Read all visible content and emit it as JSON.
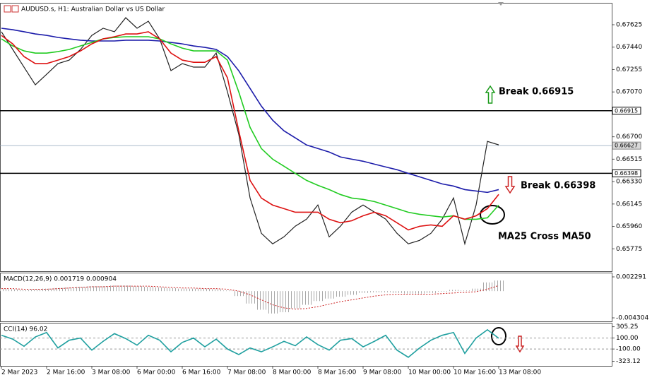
{
  "chart_data": [
    {
      "type": "line",
      "title": "AUDUSD.s, H1:  Australian Dollar vs US Dollar",
      "series": [
        {
          "color": "#222222",
          "values": [
            0.67567,
            0.67421,
            0.67275,
            0.67129,
            0.67216,
            0.67304,
            0.67333,
            0.67421,
            0.67537,
            0.67596,
            0.67567,
            0.67683,
            0.67596,
            0.67654,
            0.67508,
            0.67246,
            0.67304,
            0.67275,
            0.67275,
            0.67392,
            0.67071,
            0.6672,
            0.66195,
            0.65903,
            0.65816,
            0.65874,
            0.65962,
            0.6602,
            0.66137,
            0.65874,
            0.65962,
            0.66078,
            0.66137,
            0.66078,
            0.6602,
            0.65903,
            0.65816,
            0.65845,
            0.65903,
            0.6602,
            0.66195,
            0.65816,
            0.66137,
            0.66662,
            0.66633
          ]
        },
        {
          "color": "#1c1caa",
          "values": [
            0.67596,
            0.67584,
            0.67567,
            0.67549,
            0.67537,
            0.6752,
            0.67508,
            0.67497,
            0.67491,
            0.67491,
            0.67491,
            0.67497,
            0.67497,
            0.67497,
            0.67491,
            0.67479,
            0.67467,
            0.6745,
            0.67438,
            0.67421,
            0.67362,
            0.67245,
            0.67099,
            0.66953,
            0.66837,
            0.66749,
            0.66691,
            0.66632,
            0.66603,
            0.66574,
            0.66533,
            0.66515,
            0.66498,
            0.66474,
            0.66451,
            0.66428,
            0.66398,
            0.66369,
            0.6634,
            0.66311,
            0.66293,
            0.66264,
            0.66252,
            0.66241,
            0.66264
          ]
        },
        {
          "color": "#22cc22",
          "values": [
            0.67508,
            0.6745,
            0.67409,
            0.67391,
            0.67391,
            0.67403,
            0.67421,
            0.6745,
            0.67479,
            0.67508,
            0.6752,
            0.67526,
            0.67526,
            0.67526,
            0.67508,
            0.67467,
            0.67432,
            0.67409,
            0.67409,
            0.67409,
            0.67333,
            0.6707,
            0.66778,
            0.66603,
            0.66515,
            0.66457,
            0.66398,
            0.6634,
            0.66299,
            0.66264,
            0.66223,
            0.66194,
            0.66183,
            0.66165,
            0.66136,
            0.66107,
            0.66077,
            0.6606,
            0.66048,
            0.66037,
            0.66048,
            0.66019,
            0.66019,
            0.66031,
            0.66136
          ]
        },
        {
          "color": "#dd1111",
          "values": [
            0.67537,
            0.67467,
            0.67362,
            0.67304,
            0.67304,
            0.67333,
            0.67362,
            0.67409,
            0.67467,
            0.67508,
            0.67526,
            0.67549,
            0.67549,
            0.67567,
            0.67508,
            0.67391,
            0.67333,
            0.67315,
            0.67315,
            0.67362,
            0.67187,
            0.66749,
            0.6634,
            0.66194,
            0.66136,
            0.66107,
            0.66077,
            0.66077,
            0.66077,
            0.66019,
            0.6599,
            0.66007,
            0.66048,
            0.66077,
            0.66048,
            0.6599,
            0.65931,
            0.65961,
            0.65972,
            0.65961,
            0.66048,
            0.66019,
            0.66048,
            0.66107,
            0.66224
          ]
        }
      ],
      "ylim": [
        0.6559,
        0.678
      ],
      "yticks": [
        0.67625,
        {
          "value": 0.6744,
          "label": "0.67440"
        },
        0.67255,
        {
          "value": 0.6707,
          "label": "0.67070"
        },
        {
          "value": 0.667,
          "label": "0.66700"
        },
        0.66515,
        {
          "value": 0.6633,
          "label": "0.66330"
        },
        0.66145,
        {
          "value": 0.6596,
          "label": "0.65960"
        },
        0.65775
      ],
      "hlines": [
        0.66915,
        0.66398
      ],
      "last_price": 0.66627,
      "annotations": [
        "Break 0.66915",
        "Break 0.66398",
        "MA25 Cross MA50"
      ]
    },
    {
      "type": "bar",
      "title": "MACD(12,26,9) 0.001719 0.000904",
      "color": "#a8a8a8",
      "values": [
        0.0004,
        0.0003,
        0.0002,
        0.0003,
        0.0004,
        0.0005,
        0.0006,
        0.0007,
        0.0008,
        0.0008,
        0.0009,
        0.0009,
        0.0008,
        0.0007,
        0.0006,
        0.0005,
        0.0004,
        0.0004,
        0.0004,
        0.0003,
        0.0001,
        -0.0008,
        -0.002,
        -0.003,
        -0.0036,
        -0.0034,
        -0.0028,
        -0.0022,
        -0.0016,
        -0.0012,
        -0.0009,
        -0.0006,
        -0.0003,
        -0.0002,
        -0.0002,
        -0.0003,
        -0.0004,
        -0.0004,
        -0.0003,
        -0.0001,
        0.0002,
        0.0001,
        0.0004,
        0.0014,
        0.0017
      ],
      "line": {
        "color": "#cc2222",
        "values": [
          0.0004,
          0.0004,
          0.0003,
          0.0003,
          0.0003,
          0.0004,
          0.0005,
          0.0006,
          0.0007,
          0.0007,
          0.0008,
          0.0008,
          0.0008,
          0.0008,
          0.0007,
          0.0006,
          0.0005,
          0.0005,
          0.0004,
          0.0004,
          0.0003,
          0.0,
          -0.0006,
          -0.0014,
          -0.0022,
          -0.0027,
          -0.0029,
          -0.0028,
          -0.0025,
          -0.0021,
          -0.0017,
          -0.0014,
          -0.0011,
          -0.0008,
          -0.0006,
          -0.0005,
          -0.0005,
          -0.0005,
          -0.0005,
          -0.0004,
          -0.0003,
          -0.0002,
          -0.0001,
          0.0003,
          0.0009
        ]
      },
      "ylim": [
        -0.00487,
        0.00286
      ],
      "yticks": [
        0.002291,
        -0.004304
      ]
    },
    {
      "type": "line",
      "title": "CCI(14) 96.02",
      "categories": [
        "2 Mar 2023",
        null,
        null,
        null,
        "2 Mar 16:00",
        null,
        null,
        null,
        "3 Mar 08:00",
        null,
        null,
        null,
        "6 Mar 00:00",
        null,
        null,
        null,
        "6 Mar 16:00",
        null,
        null,
        null,
        "7 Mar 08:00",
        null,
        null,
        null,
        "8 Mar 00:00",
        null,
        null,
        null,
        "8 Mar 16:00",
        null,
        null,
        null,
        "9 Mar 08:00",
        null,
        null,
        null,
        "10 Mar 00:00",
        null,
        null,
        null,
        "10 Mar 16:00",
        null,
        null,
        null,
        "13 Mar 08:00"
      ],
      "series": [
        {
          "color": "#20a0a0",
          "values": [
            150,
            80,
            -50,
            120,
            200,
            -80,
            60,
            100,
            -120,
            40,
            180,
            90,
            -30,
            150,
            60,
            -150,
            20,
            100,
            -60,
            80,
            -100,
            -200,
            -80,
            -150,
            -60,
            40,
            -40,
            120,
            -20,
            -120,
            60,
            90,
            -60,
            40,
            150,
            -120,
            -250,
            -80,
            60,
            150,
            200,
            -180,
            100,
            250,
            96.02
          ]
        }
      ],
      "ylim": [
        -406,
        364
      ],
      "yticks": [
        305.25,
        {
          "value": 100,
          "label": "100.00"
        },
        {
          "value": -100,
          "label": "-100.00"
        },
        -323.12
      ],
      "hlines": [
        100,
        -100
      ]
    }
  ]
}
